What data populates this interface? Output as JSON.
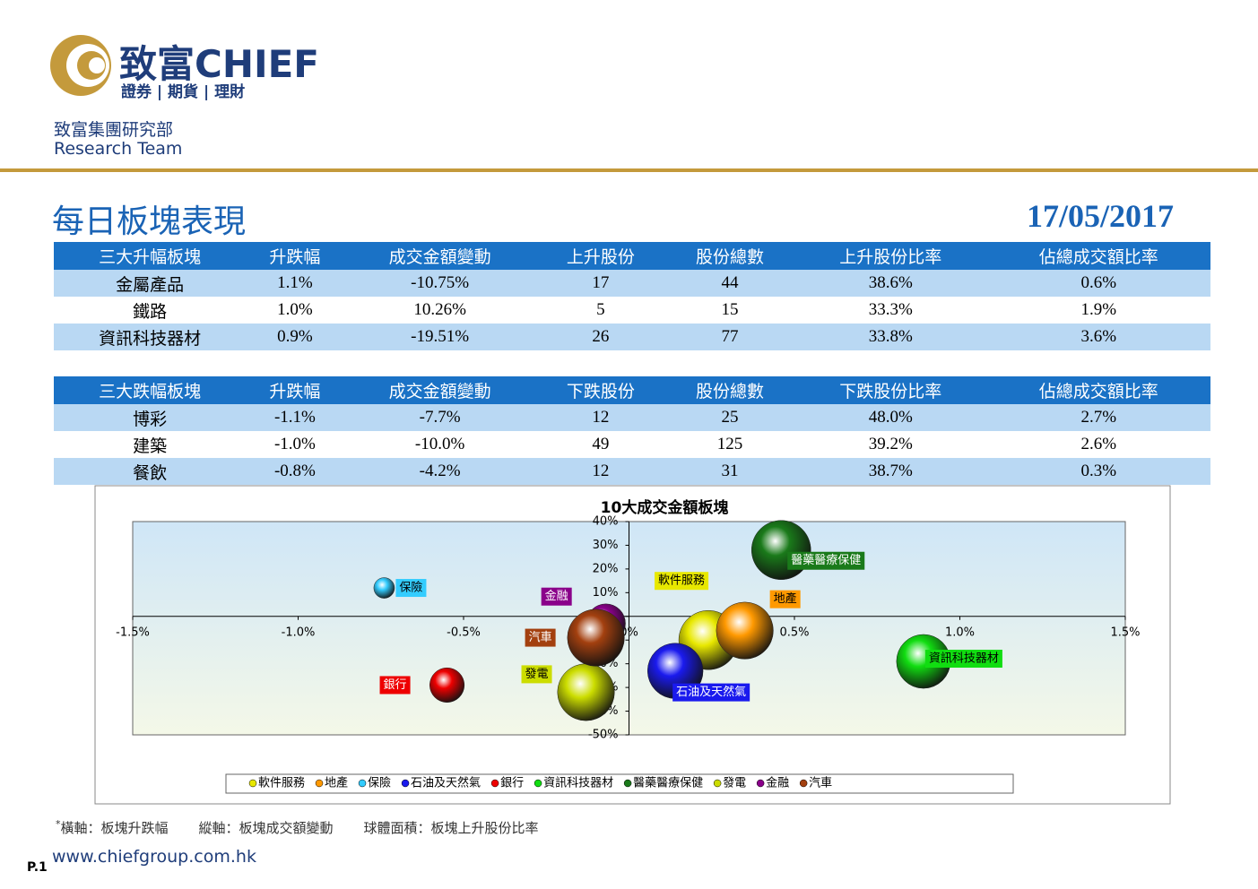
{
  "header": {
    "brand": "致富CHIEF",
    "tagline": "證券 | 期貨 | 理財",
    "dept": "致富集團研究部",
    "team": "Research Team"
  },
  "title": "每日板塊表現",
  "date": "17/05/2017",
  "tables": [
    {
      "header": [
        "三大升幅板塊",
        "升跌幅",
        "成交金額變動",
        "上升股份",
        "股份總數",
        "上升股份比率",
        "佔總成交額比率"
      ],
      "rows": [
        [
          "金屬產品",
          "1.1%",
          "-10.75%",
          "17",
          "44",
          "38.6%",
          "0.6%"
        ],
        [
          "鐵路",
          "1.0%",
          "10.26%",
          "5",
          "15",
          "33.3%",
          "1.9%"
        ],
        [
          "資訊科技器材",
          "0.9%",
          "-19.51%",
          "26",
          "77",
          "33.8%",
          "3.6%"
        ]
      ]
    },
    {
      "header": [
        "三大跌幅板塊",
        "升跌幅",
        "成交金額變動",
        "下跌股份",
        "股份總數",
        "下跌股份比率",
        "佔總成交額比率"
      ],
      "rows": [
        [
          "博彩",
          "-1.1%",
          "-7.7%",
          "12",
          "25",
          "48.0%",
          "2.7%"
        ],
        [
          "建築",
          "-1.0%",
          "-10.0%",
          "49",
          "125",
          "39.2%",
          "2.6%"
        ],
        [
          "餐飲",
          "-0.8%",
          "-4.2%",
          "12",
          "31",
          "38.7%",
          "0.3%"
        ]
      ]
    }
  ],
  "chart_data": {
    "type": "bubble",
    "title": "10大成交金額板塊",
    "xlim": [
      -1.5,
      1.5
    ],
    "xticks": [
      {
        "value": -1.5,
        "label": "-1.5%"
      },
      {
        "value": -1.0,
        "label": "-1.0%"
      },
      {
        "value": -0.5,
        "label": "-0.5%"
      },
      {
        "value": 0,
        "label": "0%"
      },
      {
        "value": 0.5,
        "label": "0.5%"
      },
      {
        "value": 1.0,
        "label": "1.0%"
      },
      {
        "value": 1.5,
        "label": "1.5%"
      }
    ],
    "ylim": [
      -50,
      40
    ],
    "yticks": [
      {
        "value": 40,
        "label": "40%"
      },
      {
        "value": 30,
        "label": "30%"
      },
      {
        "value": 20,
        "label": "20%"
      },
      {
        "value": 10,
        "label": "10%"
      },
      {
        "value": 0,
        "label": "0%"
      },
      {
        "value": -10,
        "label": "-10%"
      },
      {
        "value": -20,
        "label": "-20%"
      },
      {
        "value": -30,
        "label": "-30%"
      },
      {
        "value": -40,
        "label": "-40%"
      },
      {
        "value": -50,
        "label": "-50%"
      }
    ],
    "series": [
      {
        "name": "軟件服務",
        "color": "#e8e800",
        "x": 0.24,
        "y": -10,
        "size": 41
      },
      {
        "name": "地產",
        "color": "#ff9900",
        "x": 0.35,
        "y": -6,
        "size": 38
      },
      {
        "name": "保險",
        "color": "#33ccff",
        "x": -0.74,
        "y": 12,
        "size": 5
      },
      {
        "name": "石油及天然氣",
        "color": "#1a1aee",
        "x": 0.14,
        "y": -23,
        "size": 36
      },
      {
        "name": "銀行",
        "color": "#ee0000",
        "x": -0.55,
        "y": -29,
        "size": 14
      },
      {
        "name": "資訊科技器材",
        "color": "#11dd11",
        "x": 0.89,
        "y": -19,
        "size": 34
      },
      {
        "name": "醫藥醫療保健",
        "color": "#1a7a1a",
        "x": 0.46,
        "y": 28,
        "size": 41
      },
      {
        "name": "發電",
        "color": "#ccdd00",
        "x": -0.13,
        "y": -32,
        "size": 38
      },
      {
        "name": "金融",
        "color": "#8a008a",
        "x": -0.07,
        "y": -3,
        "size": 18
      },
      {
        "name": "汽車",
        "color": "#a3400f",
        "x": -0.1,
        "y": -9,
        "size": 38
      }
    ]
  },
  "footnote": {
    "mark": "*",
    "items": [
      "橫軸：板塊升跌幅",
      "縱軸：板塊成交額變動",
      "球體面積：板塊上升股份比率"
    ]
  },
  "footer": {
    "url": "www.chiefgroup.com.hk",
    "page": "P.1"
  }
}
